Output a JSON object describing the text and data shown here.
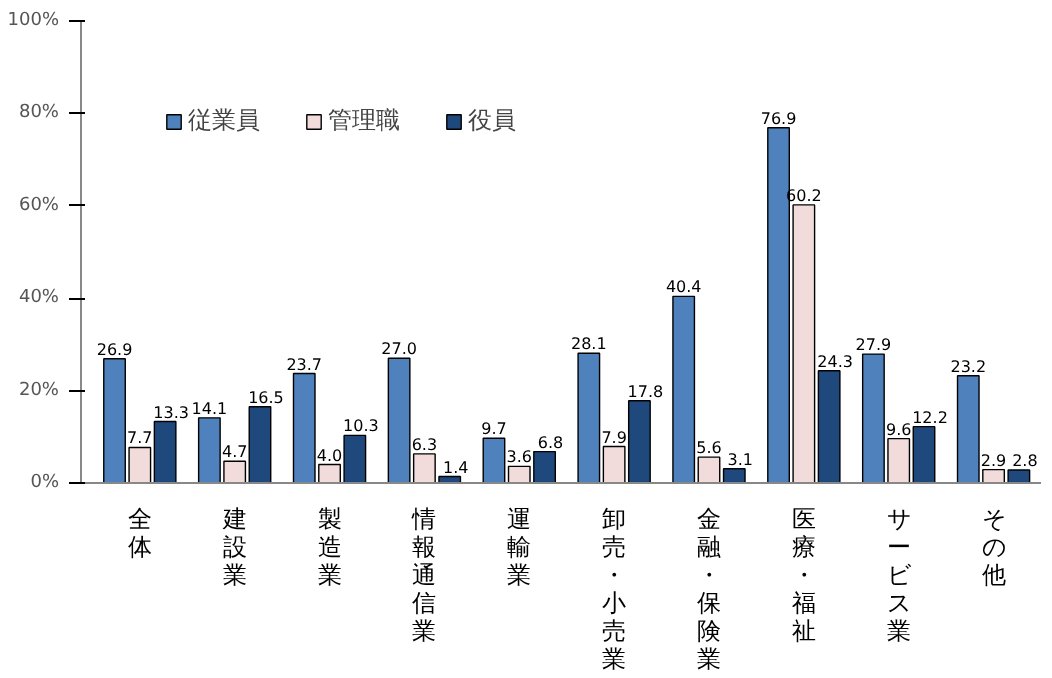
{
  "chart_data": {
    "type": "bar",
    "categories": [
      "全体",
      "建設業",
      "製造業",
      "情報通信業",
      "運輸業",
      "卸売・小売業",
      "金融・保険業",
      "医療・福祉",
      "サービス業",
      "その他"
    ],
    "series": [
      {
        "name": "従業員",
        "color": "#4f81bd",
        "values": [
          26.9,
          14.1,
          23.7,
          27.0,
          9.7,
          28.1,
          40.4,
          76.9,
          27.9,
          23.2
        ],
        "value_labels": [
          "26.9",
          "14.1",
          "23.7",
          "27.0",
          "9.7",
          "28.1",
          "40.4",
          "76.9",
          "27.9",
          "23.2"
        ]
      },
      {
        "name": "管理職",
        "color": "#f2dcdb",
        "values": [
          7.7,
          4.7,
          4.0,
          6.3,
          3.6,
          7.9,
          5.6,
          60.2,
          9.6,
          2.9
        ],
        "value_labels": [
          "7.7",
          "4.7",
          "4.0",
          "6.3",
          "3.6",
          "7.9",
          "5.6",
          "60.2",
          "9.6",
          "2.9"
        ]
      },
      {
        "name": "役員",
        "color": "#1f497d",
        "values": [
          13.3,
          16.5,
          10.3,
          1.4,
          6.8,
          17.8,
          3.1,
          24.3,
          12.2,
          2.8
        ],
        "value_labels": [
          "13.3",
          "16.5",
          "10.3",
          "1.4",
          "6.8",
          "17.8",
          "3.1",
          "24.3",
          "12.2",
          "2.8"
        ]
      }
    ],
    "ylim": [
      0,
      100
    ],
    "yticks": [
      {
        "value": 0,
        "label": "0%"
      },
      {
        "value": 20,
        "label": "20%"
      },
      {
        "value": 40,
        "label": "40%"
      },
      {
        "value": 60,
        "label": "60%"
      },
      {
        "value": 80,
        "label": "80%"
      },
      {
        "value": 100,
        "label": "100%"
      }
    ],
    "grid": false,
    "legend": "top"
  }
}
